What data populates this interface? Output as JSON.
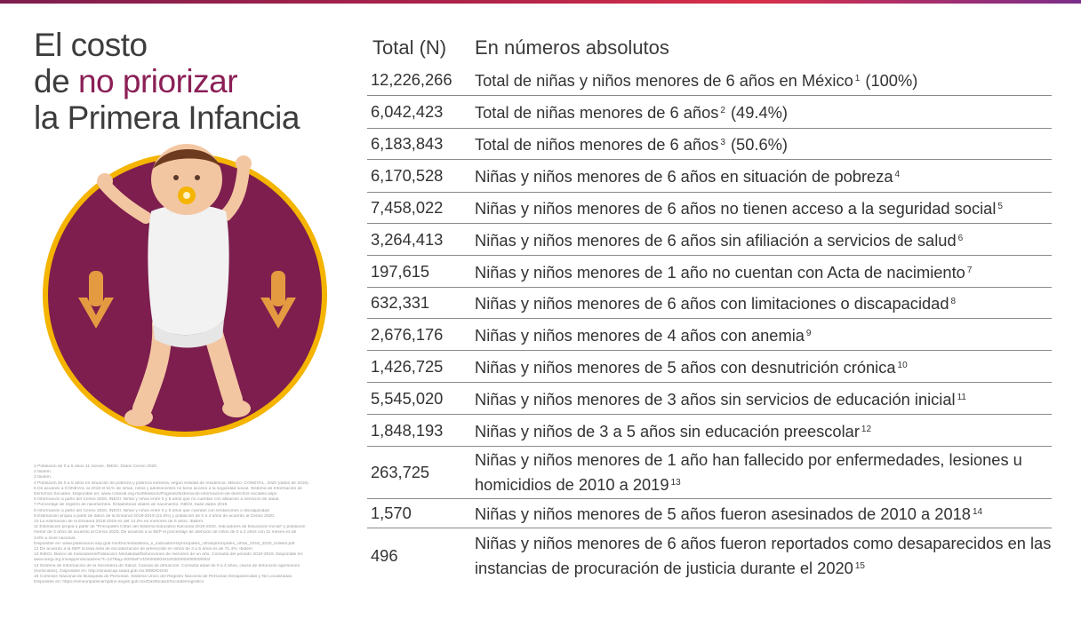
{
  "title": {
    "line1": "El costo",
    "line2_pre": "de ",
    "line2_highlight": "no priorizar",
    "line3": "la Primera Infancia"
  },
  "colors": {
    "accent": "#8b1f56",
    "circle": "#7d1e4e",
    "ring": "#f4b400",
    "arrow": "#f6b040"
  },
  "icons": [
    "baby-illustration",
    "down-arrow-icon"
  ],
  "table": {
    "header_total": "Total (N)",
    "header_desc": "En números absolutos",
    "rows": [
      {
        "n": "12,226,266",
        "desc": "Total de niñas y niños menores de 6 años en México",
        "ref": "1",
        "tail": "(100%)"
      },
      {
        "n": "6,042,423",
        "desc": "Total de niñas menores de 6 años",
        "ref": "2",
        "tail": "(49.4%)"
      },
      {
        "n": "6,183,843",
        "desc": "Total de niños menores de 6 años",
        "ref": "3",
        "tail": "(50.6%)"
      },
      {
        "n": "6,170,528",
        "desc": "Niñas y niños menores de 6 años en situación de pobreza",
        "ref": "4",
        "tail": ""
      },
      {
        "n": "7,458,022",
        "desc": "Niñas y niños menores de 6 años no tienen acceso a la seguridad social",
        "ref": "5",
        "tail": ""
      },
      {
        "n": "3,264,413",
        "desc": "Niñas y niños menores de 6 años sin afiliación a servicios de salud",
        "ref": "6",
        "tail": ""
      },
      {
        "n": "197,615",
        "desc": "Niñas y niños menores de 1 año no cuentan con Acta de nacimiento",
        "ref": "7",
        "tail": ""
      },
      {
        "n": "632,331",
        "desc": "Niñas y niños menores de 6 años con limitaciones o discapacidad",
        "ref": "8",
        "tail": ""
      },
      {
        "n": "2,676,176",
        "desc": "Niñas y niños menores de 4 años con anemia",
        "ref": "9",
        "tail": ""
      },
      {
        "n": "1,426,725",
        "desc": "Niñas y niños menores de 5 años con desnutrición crónica",
        "ref": "10",
        "tail": ""
      },
      {
        "n": "5,545,020",
        "desc": "Niñas y niños menores de 3 años sin servicios de educación inicial",
        "ref": "11",
        "tail": ""
      },
      {
        "n": "1,848,193",
        "desc": "Niñas y niños de 3 a 5 años sin educación preescolar",
        "ref": "12",
        "tail": ""
      },
      {
        "n": "263,725",
        "desc": "Niñas y niños menores de 1 año han fallecido por enfermedades, lesiones u homicidios de 2010 a 2019",
        "ref": "13",
        "tail": ""
      },
      {
        "n": "1,570",
        "desc": "Niñas y niños menores de 5 años fueron asesinados de 2010 a 2018",
        "ref": "14",
        "tail": ""
      },
      {
        "n": "496",
        "desc": "Niñas y niños menores de 6 años fueron reportados como desaparecidos en las instancias de procuración de justicia durante el 2020",
        "ref": "15",
        "tail": ""
      }
    ]
  },
  "footnotes": [
    "1 Población de 0 a 5 años 11 meses. INEGI. Datos Censo 2020.",
    "2 Ibidem.",
    "3 Ibidem.",
    "4 Población de 0 a 5 años en situación de pobreza y pobreza extrema, según entidad de residencia, México, CONEVAL, 2020 (datos de 2018).",
    "5 De acuerdo a CONEVAL al 2018 el 61% de niñas, niños y adolescentes no tiene acceso a la seguridad social. Sistema de Información de",
    "Derechos Sociales. Disponible en: www.coneval.org.mx/Medicion/Paginas/Sistema-de-informacion-de-derechos-sociales.aspx",
    "6 Información a partir del Censo 2020, INEGI. Niñas y niños entre 0 y 5 años que no cuentan con afiliación a servicios de salud.",
    "7 Porcentaje de registro de nacimientos. Estadísticas vitales de nacimiento. INEGI, base datos 2019.",
    "8 Información a partir del Censo 2020, INEGI. Niñas y niños entre 0 y 5 años que cuentan con limitaciones o discapacidad",
    "9 Estimación propia a partir de datos de la Ensanut 2018-2019 (22.5%) y población de 0 a 4 años de acuerdo al Censo 2020.",
    "10 La estimación de la Ensanut 2018-2019 es del 14.2% en menores de 5 años. Ibidem.",
    "11 Estimación propia a partir de \"Principales Cifras del Sistema Educativo Nacional 2019-2020. Indicadores de Educación Inicial\" y población",
    "menor de 3 años de acuerdo al Censo 2020. De acuerdo a la SEP el porcentaje de atención de niños de 0 a 2 años con 11 meses es de",
    "3.8% a nivel nacional.",
    "Disponible en: www.planeacion.sep.gob.mx/Doc/estadistica_e_indicadores/principales_cifras/principales_cifras_2019_2020_bolsillo.pdf",
    "12 De acuerdo a la SEP la tasa neta de escolarización de preescolar en niños de 3 a 5 años es de 71.4%. Ibidem",
    "13 INEGI. Banco de Indicadores/Población/ Mortalidad/Defunciones de menores de un año. Consulta del periodo 2010-2019. Disponible en:",
    "www.inegi.org.mx/app/indicadores/?t=1278ag=00#divFV1002000034100200003000000004",
    "14 Sistema de Información de la Secretaría de Salud. Causas de defunción. Consulta edad de 0 a 4 años, causa de defunción agresiones",
    "(homicidios). Disponible en: http://sinaiscap.salud.gob.mx:8080/DGIS/",
    "15 Comisión Nacional de Búsqueda de Personas. Sistema Único del Registro Nacional de Personas Desaparecidas y No Localizadas.",
    "Disponible en: https://versionpublicarnpdno.segob.gob.mx/Dashboard/Sociodemografico"
  ]
}
